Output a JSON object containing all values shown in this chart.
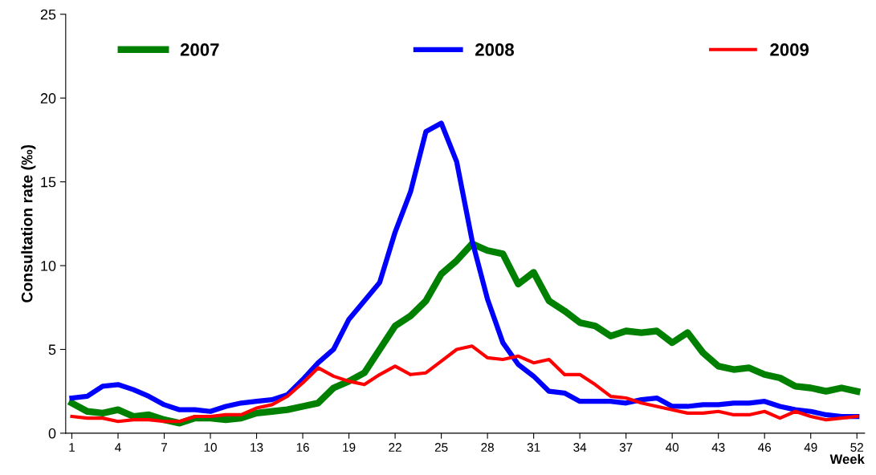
{
  "chart_data": {
    "type": "line",
    "xlabel": "Week",
    "ylabel": "Consultation rate (‰)",
    "x": [
      1,
      2,
      3,
      4,
      5,
      6,
      7,
      8,
      9,
      10,
      11,
      12,
      13,
      14,
      15,
      16,
      17,
      18,
      19,
      20,
      21,
      22,
      23,
      24,
      25,
      26,
      27,
      28,
      29,
      30,
      31,
      32,
      33,
      34,
      35,
      36,
      37,
      38,
      39,
      40,
      41,
      42,
      43,
      44,
      45,
      46,
      47,
      48,
      49,
      50,
      51,
      52
    ],
    "series": [
      {
        "name": "2007",
        "color": "#008000",
        "values": [
          1.8,
          1.3,
          1.2,
          1.4,
          1.0,
          1.1,
          0.8,
          0.6,
          0.9,
          0.9,
          0.8,
          0.9,
          1.2,
          1.3,
          1.4,
          1.6,
          1.8,
          2.7,
          3.1,
          3.6,
          5.0,
          6.4,
          7.0,
          7.9,
          9.5,
          10.3,
          11.3,
          10.9,
          10.7,
          8.9,
          9.6,
          7.9,
          7.3,
          6.6,
          6.4,
          5.8,
          6.1,
          6.0,
          6.1,
          5.4,
          6.0,
          4.8,
          4.0,
          3.8,
          3.9,
          3.5,
          3.3,
          2.8,
          2.7,
          2.5,
          2.7,
          2.5
        ]
      },
      {
        "name": "2008",
        "color": "#0000ff",
        "values": [
          2.1,
          2.2,
          2.8,
          2.9,
          2.6,
          2.2,
          1.7,
          1.4,
          1.4,
          1.3,
          1.6,
          1.8,
          1.9,
          2.0,
          2.3,
          3.2,
          4.2,
          5.0,
          6.8,
          7.9,
          9.0,
          12.0,
          14.4,
          18.0,
          18.5,
          16.2,
          11.5,
          8.0,
          5.4,
          4.1,
          3.4,
          2.5,
          2.4,
          1.9,
          1.9,
          1.9,
          1.8,
          2.0,
          2.1,
          1.6,
          1.6,
          1.7,
          1.7,
          1.8,
          1.8,
          1.9,
          1.6,
          1.4,
          1.3,
          1.1,
          1.0,
          1.0
        ]
      },
      {
        "name": "2009",
        "color": "#ff0000",
        "values": [
          1.0,
          0.9,
          0.9,
          0.7,
          0.8,
          0.8,
          0.7,
          0.7,
          1.0,
          1.0,
          1.1,
          1.1,
          1.5,
          1.7,
          2.2,
          3.0,
          3.9,
          3.4,
          3.1,
          2.9,
          3.5,
          4.0,
          3.5,
          3.6,
          4.3,
          5.0,
          5.2,
          4.5,
          4.4,
          4.6,
          4.2,
          4.4,
          3.5,
          3.5,
          2.9,
          2.2,
          2.1,
          1.8,
          1.6,
          1.4,
          1.2,
          1.2,
          1.3,
          1.1,
          1.1,
          1.3,
          0.9,
          1.3,
          1.0,
          0.8,
          0.9,
          1.0
        ]
      }
    ],
    "xlim": [
      0.6,
      52.5
    ],
    "xticks": [
      1,
      4,
      7,
      10,
      13,
      16,
      19,
      22,
      25,
      28,
      31,
      34,
      37,
      40,
      43,
      46,
      49,
      52
    ],
    "ylim": [
      0,
      25
    ],
    "yticks": [
      0,
      5,
      10,
      15,
      20,
      25
    ],
    "grid": false,
    "legend": "top",
    "marker": "none",
    "line_style": "solid"
  }
}
